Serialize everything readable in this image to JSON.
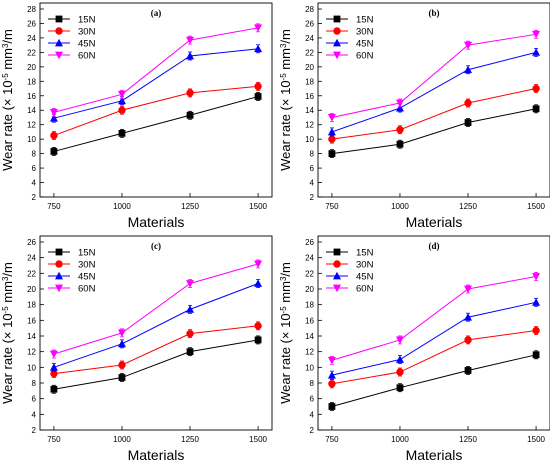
{
  "chart_data": [
    {
      "type": "line",
      "title": "(a)",
      "xlabel": "Materials",
      "ylabel": "Wear rate (× 10-5 mm3/m",
      "x": [
        750,
        1000,
        1250,
        1500
      ],
      "ylim": [
        2,
        28
      ],
      "yticks": [
        2,
        4,
        6,
        8,
        10,
        12,
        14,
        16,
        18,
        20,
        22,
        24,
        26,
        28
      ],
      "legend_position": "top-left",
      "series": [
        {
          "name": "15N",
          "values": [
            8.3,
            10.8,
            13.3,
            15.9
          ],
          "color": "#000000",
          "marker": "square"
        },
        {
          "name": "30N",
          "values": [
            10.5,
            14.0,
            16.4,
            17.3
          ],
          "color": "#ff0000",
          "marker": "circle"
        },
        {
          "name": "45N",
          "values": [
            12.9,
            15.3,
            21.5,
            22.5
          ],
          "color": "#0000ff",
          "marker": "triangle-up"
        },
        {
          "name": "60N",
          "values": [
            13.7,
            16.2,
            23.7,
            25.4
          ],
          "color": "#ff00ff",
          "marker": "triangle-down"
        }
      ]
    },
    {
      "type": "line",
      "title": "(b)",
      "xlabel": "Materials",
      "ylabel": "Wear rate (× 10-5 mm3/m",
      "x": [
        750,
        1000,
        1250,
        1500
      ],
      "ylim": [
        2,
        28
      ],
      "yticks": [
        2,
        4,
        6,
        8,
        10,
        12,
        14,
        16,
        18,
        20,
        22,
        24,
        26,
        28
      ],
      "legend_position": "top-left",
      "series": [
        {
          "name": "15N",
          "values": [
            8.0,
            9.3,
            12.3,
            14.2
          ],
          "color": "#000000",
          "marker": "square"
        },
        {
          "name": "30N",
          "values": [
            10.0,
            11.3,
            15.0,
            17.0
          ],
          "color": "#ff0000",
          "marker": "circle"
        },
        {
          "name": "45N",
          "values": [
            11.0,
            14.3,
            19.6,
            22.0
          ],
          "color": "#0000ff",
          "marker": "triangle-up"
        },
        {
          "name": "60N",
          "values": [
            13.0,
            15.0,
            23.0,
            24.5
          ],
          "color": "#ff00ff",
          "marker": "triangle-down"
        }
      ]
    },
    {
      "type": "line",
      "title": "(c)",
      "xlabel": "Materials",
      "ylabel": "Wear rate (× 10-5 mm3/m",
      "x": [
        750,
        1000,
        1250,
        1500
      ],
      "ylim": [
        2,
        26
      ],
      "yticks": [
        2,
        4,
        6,
        8,
        10,
        12,
        14,
        16,
        18,
        20,
        22,
        24,
        26
      ],
      "legend_position": "top-left",
      "series": [
        {
          "name": "15N",
          "values": [
            7.2,
            8.7,
            12.0,
            13.5
          ],
          "color": "#000000",
          "marker": "square"
        },
        {
          "name": "30N",
          "values": [
            9.2,
            10.3,
            14.3,
            15.3
          ],
          "color": "#ff0000",
          "marker": "circle"
        },
        {
          "name": "45N",
          "values": [
            10.0,
            13.0,
            17.4,
            20.7
          ],
          "color": "#0000ff",
          "marker": "triangle-up"
        },
        {
          "name": "60N",
          "values": [
            11.7,
            14.4,
            20.7,
            23.2
          ],
          "color": "#ff00ff",
          "marker": "triangle-down"
        }
      ]
    },
    {
      "type": "line",
      "title": "(d)",
      "xlabel": "Materials",
      "ylabel": "Wear rate (× 10-5 mm3/m",
      "x": [
        750,
        1000,
        1250,
        1500
      ],
      "ylim": [
        2,
        26
      ],
      "yticks": [
        2,
        4,
        6,
        8,
        10,
        12,
        14,
        16,
        18,
        20,
        22,
        24,
        26
      ],
      "legend_position": "top-left",
      "series": [
        {
          "name": "15N",
          "values": [
            5.0,
            7.4,
            9.6,
            11.6
          ],
          "color": "#000000",
          "marker": "square"
        },
        {
          "name": "30N",
          "values": [
            7.9,
            9.4,
            13.5,
            14.7
          ],
          "color": "#ff0000",
          "marker": "circle"
        },
        {
          "name": "45N",
          "values": [
            9.0,
            11.0,
            16.4,
            18.3
          ],
          "color": "#0000ff",
          "marker": "triangle-up"
        },
        {
          "name": "60N",
          "values": [
            10.9,
            13.5,
            20.0,
            21.6
          ],
          "color": "#ff00ff",
          "marker": "triangle-down"
        }
      ]
    }
  ]
}
